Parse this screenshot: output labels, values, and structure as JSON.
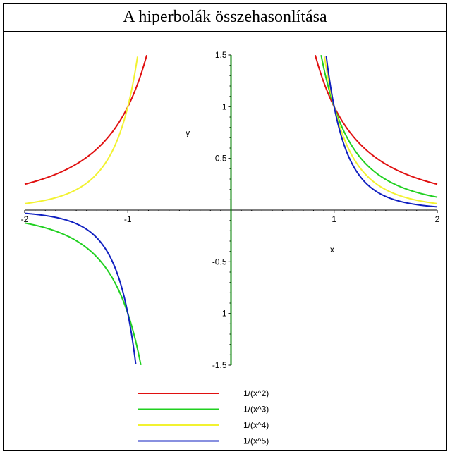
{
  "window": {
    "title": "A hiperbolák összehasonlítása"
  },
  "chart_data": {
    "type": "line",
    "title": "",
    "xlabel": "x",
    "ylabel": "y",
    "xlim": [
      -2,
      2
    ],
    "ylim": [
      -1.5,
      1.5
    ],
    "x_ticks": [
      -2,
      -1,
      1,
      2
    ],
    "x_tick_labels": [
      "-2",
      "-1",
      "1",
      "2"
    ],
    "y_ticks": [
      1.5,
      1,
      0.5,
      -0.5,
      -1,
      -1.5
    ],
    "y_tick_labels": [
      "1.5",
      "1",
      "0.5",
      "-0.5",
      "-1",
      "-1.5"
    ],
    "grid": false,
    "legend_position": "bottom",
    "series": [
      {
        "name": "1/(x^2)",
        "power": 2,
        "color": "#e01010"
      },
      {
        "name": "1/(x^3)",
        "power": 3,
        "color": "#20d020"
      },
      {
        "name": "1/(x^4)",
        "power": 4,
        "color": "#f2f230"
      },
      {
        "name": "1/(x^5)",
        "power": 5,
        "color": "#1020c0"
      }
    ],
    "axis_color": "#008000"
  }
}
